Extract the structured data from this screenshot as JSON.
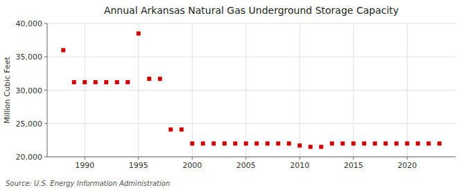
{
  "chart_data": {
    "type": "scatter",
    "title": "Annual Arkansas Natural Gas Underground Storage Capacity",
    "ylabel": "Million Cubic Feet",
    "annotations": [
      "Source: U.S. Energy Information Administration"
    ],
    "x": [
      1988,
      1989,
      1990,
      1991,
      1992,
      1993,
      1994,
      1995,
      1996,
      1997,
      1998,
      1999,
      2000,
      2001,
      2002,
      2003,
      2004,
      2005,
      2006,
      2007,
      2008,
      2009,
      2010,
      2011,
      2012,
      2013,
      2014,
      2015,
      2016,
      2017,
      2018,
      2019,
      2020,
      2021,
      2022,
      2023
    ],
    "values": [
      36000,
      31200,
      31200,
      31200,
      31200,
      31200,
      31200,
      38500,
      31700,
      31700,
      24100,
      24100,
      22000,
      22000,
      22000,
      22000,
      22000,
      22000,
      22000,
      22000,
      22000,
      22000,
      21700,
      21500,
      21500,
      22000,
      22000,
      22000,
      22000,
      22000,
      22000,
      22000,
      22000,
      22000,
      22000,
      22000
    ],
    "color": "#cc0000",
    "marker": "square",
    "xlim": [
      1986.5,
      2024.5
    ],
    "xticks": [
      1990,
      1995,
      2000,
      2005,
      2010,
      2015,
      2020
    ],
    "ylim": [
      20000,
      40000
    ],
    "yticks": [
      {
        "value": 20000,
        "label": "20,000"
      },
      {
        "value": 25000,
        "label": "25,000"
      },
      {
        "value": 30000,
        "label": "30,000"
      },
      {
        "value": 35000,
        "label": "35,000"
      },
      {
        "value": 40000,
        "label": "40,000"
      }
    ],
    "grid": true
  }
}
